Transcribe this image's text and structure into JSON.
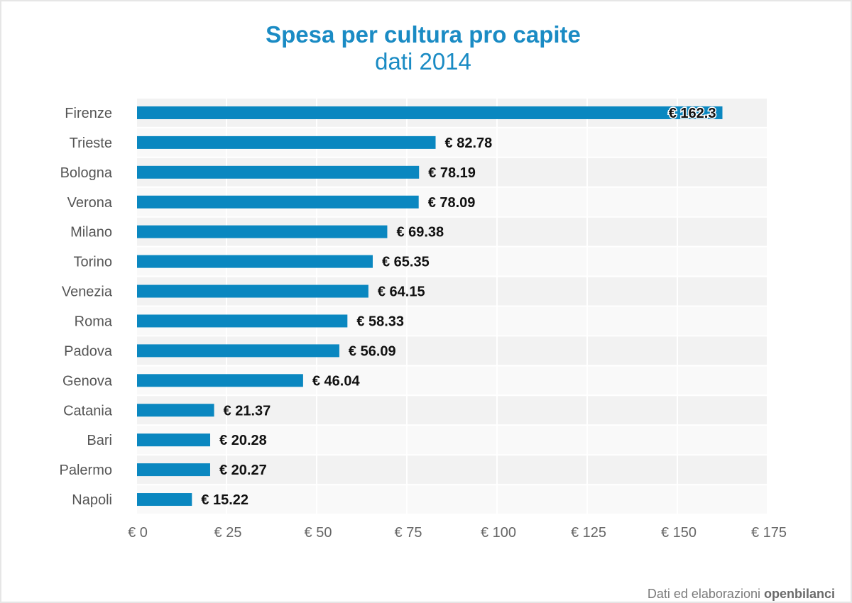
{
  "chart_data": {
    "type": "bar",
    "orientation": "horizontal",
    "title": "Spesa per cultura pro capite",
    "subtitle": "dati 2014",
    "categories": [
      "Firenze",
      "Trieste",
      "Bologna",
      "Verona",
      "Milano",
      "Torino",
      "Venezia",
      "Roma",
      "Padova",
      "Genova",
      "Catania",
      "Bari",
      "Palermo",
      "Napoli"
    ],
    "values": [
      162.3,
      82.78,
      78.19,
      78.09,
      69.38,
      65.35,
      64.15,
      58.33,
      56.09,
      46.04,
      21.37,
      20.28,
      20.27,
      15.22
    ],
    "data_labels": [
      "€ 162.3",
      "€ 82.78",
      "€ 78.19",
      "€ 78.09",
      "€ 69.38",
      "€ 65.35",
      "€ 64.15",
      "€ 58.33",
      "€ 56.09",
      "€ 46.04",
      "€ 21.37",
      "€ 20.28",
      "€ 20.27",
      "€ 15.22"
    ],
    "xlim": [
      0,
      175
    ],
    "x_ticks": [
      0,
      25,
      50,
      75,
      100,
      125,
      150,
      175
    ],
    "x_tick_labels": [
      "€ 0",
      "€ 25",
      "€ 50",
      "€ 75",
      "€ 100",
      "€ 125",
      "€ 150",
      "€ 175"
    ],
    "xlabel": "",
    "ylabel": "",
    "grid": true,
    "bar_color": "#0a87c0",
    "title_color": "#1a8bc4"
  },
  "credit": {
    "prefix": "Dati ed elaborazioni",
    "brand": "openbilanci"
  }
}
